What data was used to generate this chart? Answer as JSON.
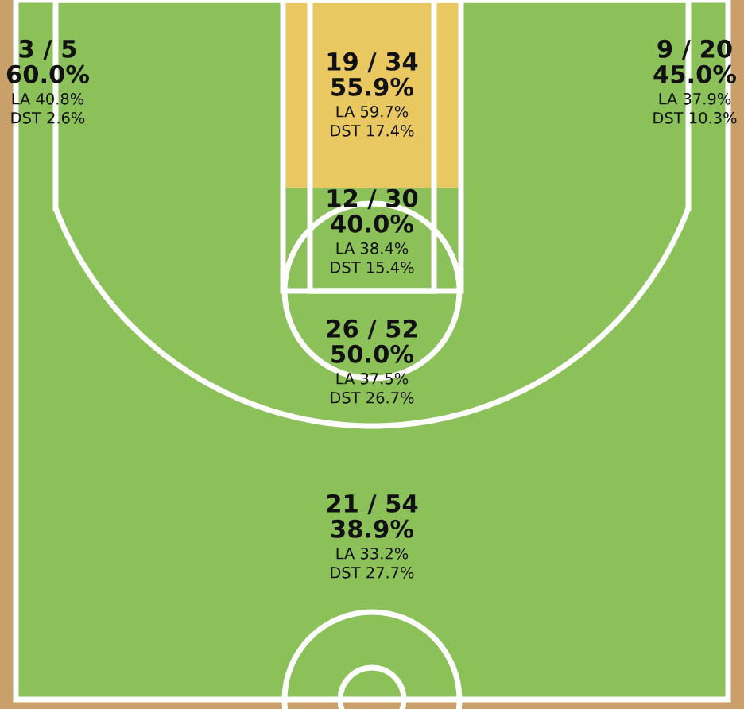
{
  "chart_data": {
    "type": "other",
    "categories": [
      null,
      null,
      null,
      null,
      null,
      null
    ],
    "values": [
      60.0,
      55.9,
      45.0,
      40.0,
      50.0,
      38.9
    ],
    "value_labels": [
      "60.0%",
      "55.9%",
      "45.0%",
      "40.0%",
      "50.0%",
      "38.9%"
    ],
    "colors": [
      "#8cc15a",
      "#e9c862",
      "#8cc15a",
      "#8cc15a",
      "#8cc15a",
      "#8cc15a"
    ],
    "annotations": [
      "3 / 5",
      "LA 40.8%",
      "DST 2.6%",
      "19 / 34",
      "LA 59.7%",
      "DST 17.4%",
      "9 / 20",
      "LA 37.9%",
      "DST 10.3%",
      "12 / 30",
      "LA 38.4%",
      "DST 15.4%",
      "26 / 52",
      "LA 37.5%",
      "DST 26.7%",
      "21 / 54",
      "LA 33.2%",
      "DST 27.7%"
    ]
  }
}
